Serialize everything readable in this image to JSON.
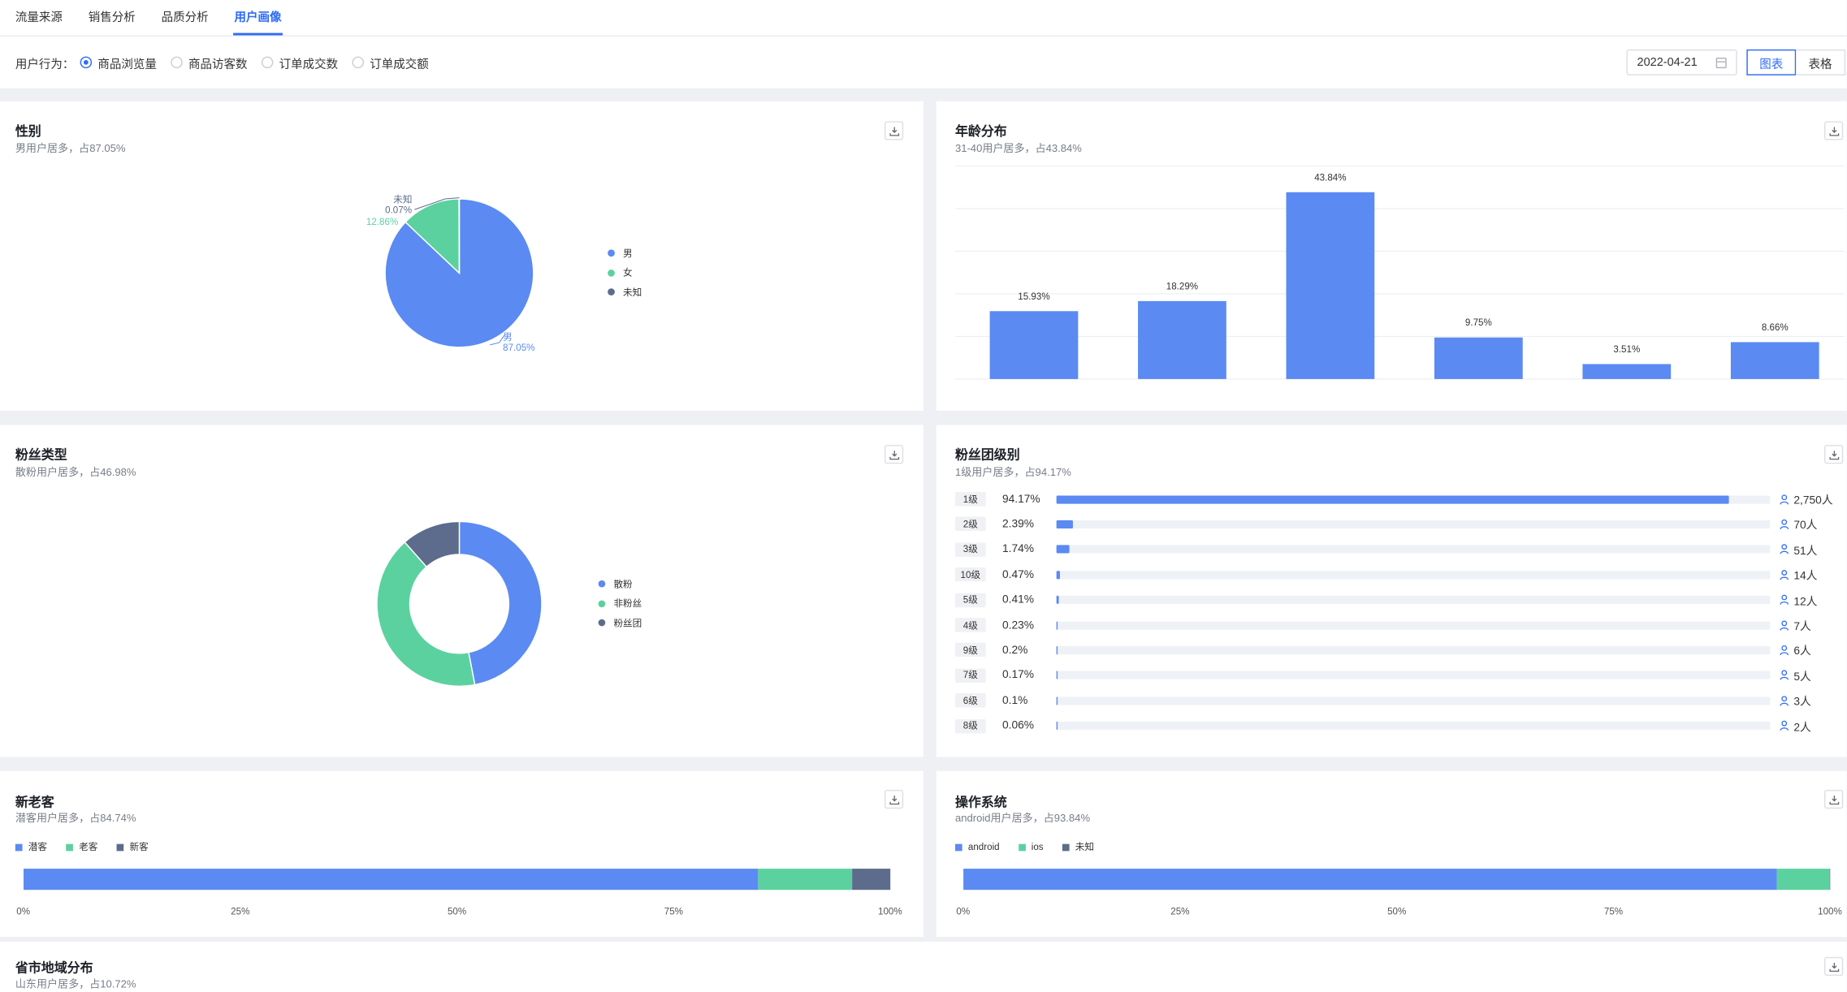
{
  "tabs": [
    {
      "label": "流量来源",
      "active": false
    },
    {
      "label": "销售分析",
      "active": false
    },
    {
      "label": "品质分析",
      "active": false
    },
    {
      "label": "用户画像",
      "active": true
    }
  ],
  "filter": {
    "label": "用户行为：",
    "options": [
      {
        "label": "商品浏览量",
        "checked": true
      },
      {
        "label": "商品访客数",
        "checked": false
      },
      {
        "label": "订单成交数",
        "checked": false
      },
      {
        "label": "订单成交额",
        "checked": false
      }
    ],
    "date": "2022-04-21",
    "view_chart": "图表",
    "view_table": "表格"
  },
  "colors": {
    "blue": "#5b8af2",
    "green": "#5cd1a0",
    "slate": "#5d6c8c",
    "accent": "#2f6cf6"
  },
  "gender": {
    "title": "性别",
    "subtitle": "男用户居多，占87.05%",
    "labels": {
      "male_name": "男",
      "male_pct": "87.05%",
      "female_pct": "12.86%",
      "unknown_name": "未知",
      "unknown_pct": "0.07%"
    },
    "legend": [
      "男",
      "女",
      "未知"
    ]
  },
  "age": {
    "title": "年龄分布",
    "subtitle": "31-40用户居多，占43.84%"
  },
  "fans_type": {
    "title": "粉丝类型",
    "subtitle": "散粉用户居多，占46.98%",
    "legend": [
      "散粉",
      "非粉丝",
      "粉丝团"
    ]
  },
  "fan_level": {
    "title": "粉丝团级别",
    "subtitle": "1级用户居多，占94.17%",
    "rows": [
      {
        "tag": "1级",
        "pct": "94.17%",
        "value": 94.17,
        "count": "2,750人"
      },
      {
        "tag": "2级",
        "pct": "2.39%",
        "value": 2.39,
        "count": "70人"
      },
      {
        "tag": "3级",
        "pct": "1.74%",
        "value": 1.74,
        "count": "51人"
      },
      {
        "tag": "10级",
        "pct": "0.47%",
        "value": 0.47,
        "count": "14人"
      },
      {
        "tag": "5级",
        "pct": "0.41%",
        "value": 0.41,
        "count": "12人"
      },
      {
        "tag": "4级",
        "pct": "0.23%",
        "value": 0.23,
        "count": "7人"
      },
      {
        "tag": "9级",
        "pct": "0.2%",
        "value": 0.2,
        "count": "6人"
      },
      {
        "tag": "7级",
        "pct": "0.17%",
        "value": 0.17,
        "count": "5人"
      },
      {
        "tag": "6级",
        "pct": "0.1%",
        "value": 0.1,
        "count": "3人"
      },
      {
        "tag": "8级",
        "pct": "0.06%",
        "value": 0.06,
        "count": "2人"
      }
    ]
  },
  "new_old": {
    "title": "新老客",
    "subtitle": "潜客用户居多，占84.74%",
    "legend": [
      "潜客",
      "老客",
      "新客"
    ]
  },
  "os": {
    "title": "操作系统",
    "subtitle": "android用户居多，占93.84%",
    "legend": [
      "android",
      "ios",
      "未知"
    ]
  },
  "region": {
    "title": "省市地域分布",
    "subtitle": "山东用户居多，占10.72%"
  },
  "chart_data": [
    {
      "type": "pie",
      "categories": [
        "男",
        "女",
        "未知"
      ],
      "values": [
        87.05,
        12.86,
        0.07
      ],
      "legend_position": "right"
    },
    {
      "type": "bar",
      "categories": [
        "",
        "",
        "",
        "",
        "",
        ""
      ],
      "values": [
        15.93,
        18.29,
        43.84,
        9.75,
        3.51,
        8.66
      ],
      "data_labels": [
        "15.93%",
        "18.29%",
        "43.84%",
        "9.75%",
        "3.51%",
        "8.66%"
      ],
      "ylim": [
        0,
        50
      ],
      "grid": true
    },
    {
      "type": "pie",
      "donut": true,
      "categories": [
        "散粉",
        "非粉丝",
        "粉丝团"
      ],
      "values": [
        46.98,
        41.5,
        11.52
      ],
      "legend_position": "right"
    },
    {
      "type": "bar",
      "orientation": "horizontal",
      "stacked": true,
      "categories": [
        "潜客",
        "老客",
        "新客"
      ],
      "values": [
        84.74,
        10.85,
        4.41
      ],
      "tick_labels": [
        "0%",
        "25%",
        "50%",
        "75%",
        "100%"
      ],
      "legend_position": "top-left"
    },
    {
      "type": "bar",
      "orientation": "horizontal",
      "stacked": true,
      "categories": [
        "android",
        "ios",
        "未知"
      ],
      "values": [
        93.84,
        6.1,
        0.06
      ],
      "tick_labels": [
        "0%",
        "25%",
        "50%",
        "75%",
        "100%"
      ],
      "legend_position": "top-left"
    }
  ]
}
